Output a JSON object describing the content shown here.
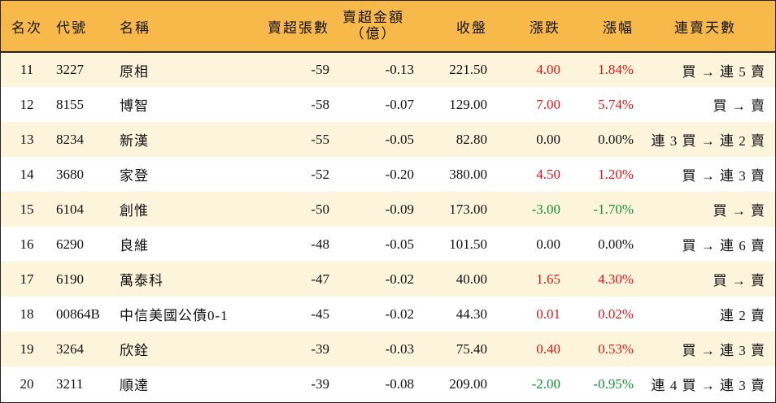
{
  "headers": {
    "rank": "名次",
    "code": "代號",
    "name": "名稱",
    "net_sell_shares": "賣超張數",
    "net_sell_amount_line1": "賣超金額",
    "net_sell_amount_line2": "（億）",
    "close": "收盤",
    "change": "漲跌",
    "change_pct": "漲幅",
    "streak": "連賣天數"
  },
  "colors": {
    "header_bg": "#f8b94b",
    "row_odd_bg": "#fdf4dc",
    "up": "#e0161b",
    "down": "#109233"
  },
  "rows": [
    {
      "rank": "11",
      "code": "3227",
      "name": "原相",
      "shares": "-59",
      "amount": "-0.13",
      "close": "221.50",
      "change": "4.00",
      "pct": "1.84%",
      "dir": "up",
      "streak": "買 → 連 5 賣"
    },
    {
      "rank": "12",
      "code": "8155",
      "name": "博智",
      "shares": "-58",
      "amount": "-0.07",
      "close": "129.00",
      "change": "7.00",
      "pct": "5.74%",
      "dir": "up",
      "streak": "買 → 賣"
    },
    {
      "rank": "13",
      "code": "8234",
      "name": "新漢",
      "shares": "-55",
      "amount": "-0.05",
      "close": "82.80",
      "change": "0.00",
      "pct": "0.00%",
      "dir": "flat",
      "streak": "連 3 買 → 連 2 賣"
    },
    {
      "rank": "14",
      "code": "3680",
      "name": "家登",
      "shares": "-52",
      "amount": "-0.20",
      "close": "380.00",
      "change": "4.50",
      "pct": "1.20%",
      "dir": "up",
      "streak": "買 → 連 3 賣"
    },
    {
      "rank": "15",
      "code": "6104",
      "name": "創惟",
      "shares": "-50",
      "amount": "-0.09",
      "close": "173.00",
      "change": "-3.00",
      "pct": "-1.70%",
      "dir": "down",
      "streak": "買 → 賣"
    },
    {
      "rank": "16",
      "code": "6290",
      "name": "良維",
      "shares": "-48",
      "amount": "-0.05",
      "close": "101.50",
      "change": "0.00",
      "pct": "0.00%",
      "dir": "flat",
      "streak": "買 → 連 6 賣"
    },
    {
      "rank": "17",
      "code": "6190",
      "name": "萬泰科",
      "shares": "-47",
      "amount": "-0.02",
      "close": "40.00",
      "change": "1.65",
      "pct": "4.30%",
      "dir": "up",
      "streak": "買 → 賣"
    },
    {
      "rank": "18",
      "code": "00864B",
      "name": "中信美國公債0-1",
      "shares": "-45",
      "amount": "-0.02",
      "close": "44.30",
      "change": "0.01",
      "pct": "0.02%",
      "dir": "up",
      "streak": "連 2 賣"
    },
    {
      "rank": "19",
      "code": "3264",
      "name": "欣銓",
      "shares": "-39",
      "amount": "-0.03",
      "close": "75.40",
      "change": "0.40",
      "pct": "0.53%",
      "dir": "up",
      "streak": "買 → 連 3 賣"
    },
    {
      "rank": "20",
      "code": "3211",
      "name": "順達",
      "shares": "-39",
      "amount": "-0.08",
      "close": "209.00",
      "change": "-2.00",
      "pct": "-0.95%",
      "dir": "down",
      "streak": "連 4 買 → 連 3 賣"
    }
  ]
}
